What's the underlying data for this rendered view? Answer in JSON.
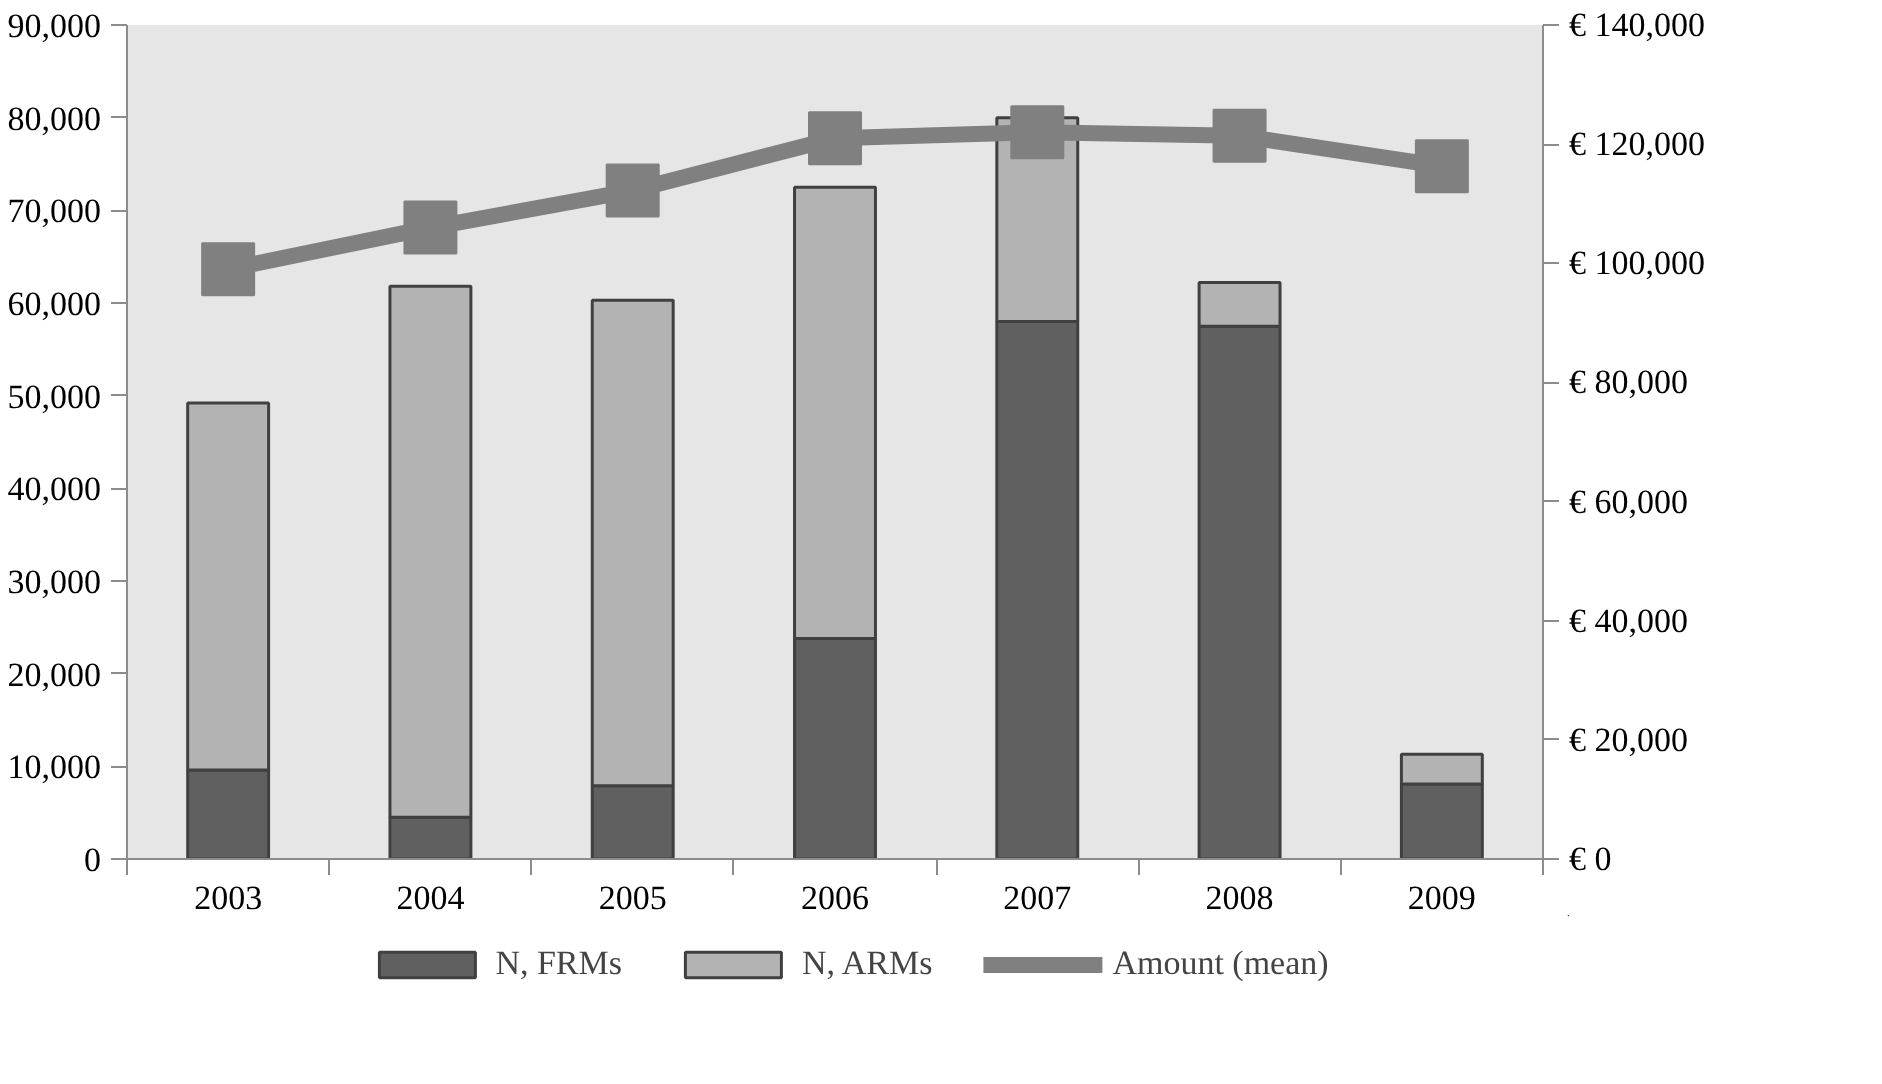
{
  "chart_data": {
    "type": "bar",
    "stacked": true,
    "categories": [
      "2003",
      "2004",
      "2005",
      "2006",
      "2007",
      "2008",
      "2009"
    ],
    "series": [
      {
        "name": "N, FRMs",
        "color": "#606060",
        "values": [
          9600,
          4500,
          7900,
          23800,
          58000,
          57500,
          8100
        ]
      },
      {
        "name": "N, ARMs",
        "color": "#b3b3b3",
        "values": [
          39600,
          57300,
          52400,
          48700,
          22000,
          4700,
          3200
        ]
      },
      {
        "name": "Amount (mean)",
        "type": "line",
        "axis": "y2",
        "color": "#808080",
        "marker": "square",
        "values": [
          99000,
          106000,
          112200,
          121000,
          122000,
          121400,
          116300
        ]
      }
    ],
    "ylim": [
      0,
      90000
    ],
    "yticks": [
      {
        "value": 0,
        "label": "0"
      },
      {
        "value": 10000,
        "label": "10,000"
      },
      {
        "value": 20000,
        "label": "20,000"
      },
      {
        "value": 30000,
        "label": "30,000"
      },
      {
        "value": 40000,
        "label": "40,000"
      },
      {
        "value": 50000,
        "label": "50,000"
      },
      {
        "value": 60000,
        "label": "60,000"
      },
      {
        "value": 70000,
        "label": "70,000"
      },
      {
        "value": 80000,
        "label": "80,000"
      },
      {
        "value": 90000,
        "label": "90,000"
      }
    ],
    "y2lim": [
      0,
      140000
    ],
    "y2ticks": [
      {
        "value": 0,
        "label": "€ 0"
      },
      {
        "value": 20000,
        "label": "€ 20,000"
      },
      {
        "value": 40000,
        "label": "€ 40,000"
      },
      {
        "value": 60000,
        "label": "€ 60,000"
      },
      {
        "value": 80000,
        "label": "€ 80,000"
      },
      {
        "value": 100000,
        "label": "€ 100,000"
      },
      {
        "value": 120000,
        "label": "€ 120,000"
      },
      {
        "value": 140000,
        "label": "€ 140,000"
      }
    ],
    "grid": false,
    "legend": "bottom"
  }
}
